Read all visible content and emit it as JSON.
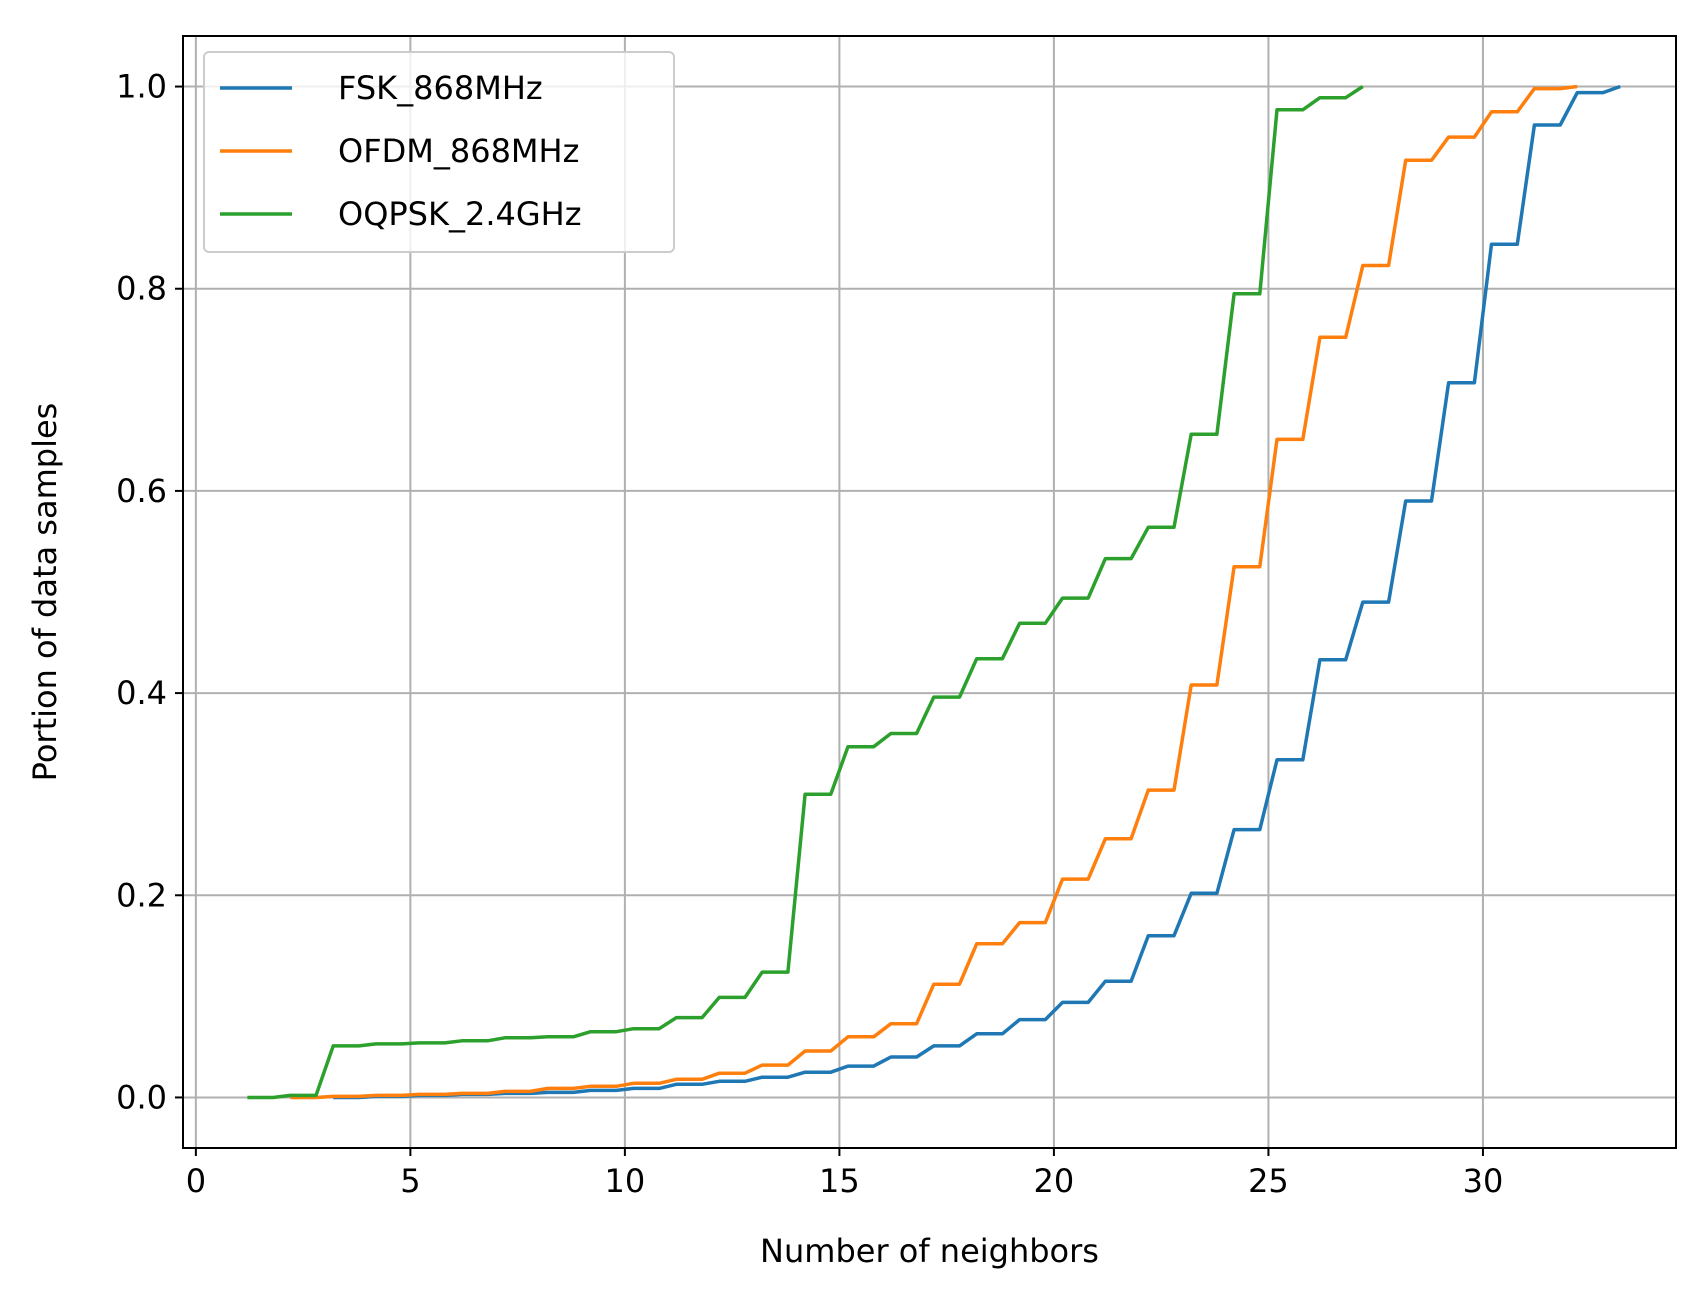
{
  "chart_data": {
    "type": "line",
    "title": "",
    "xlabel": "Number of neighbors",
    "ylabel": "Portion of data samples",
    "xlim": [
      -0.3,
      34.5
    ],
    "ylim": [
      -0.05,
      1.05
    ],
    "xticks": [
      0,
      5,
      10,
      15,
      20,
      25,
      30
    ],
    "xtick_labels": [
      "0",
      "5",
      "10",
      "15",
      "20",
      "25",
      "30"
    ],
    "yticks": [
      0.0,
      0.2,
      0.4,
      0.6,
      0.8,
      1.0
    ],
    "ytick_labels": [
      "0.0",
      "0.2",
      "0.4",
      "0.6",
      "0.8",
      "1.0"
    ],
    "grid": true,
    "legend_position": "top-left",
    "series": [
      {
        "name": "FSK_868MHz",
        "color": "#1f77b4",
        "x": [
          3,
          4,
          5,
          6,
          7,
          8,
          9,
          10,
          11,
          12,
          13,
          14,
          15,
          16,
          17,
          18,
          19,
          20,
          21,
          22,
          23,
          24,
          25,
          26,
          27,
          28,
          29,
          30,
          31,
          32,
          33
        ],
        "y": [
          0.0,
          0.001,
          0.002,
          0.003,
          0.004,
          0.005,
          0.007,
          0.009,
          0.013,
          0.016,
          0.02,
          0.025,
          0.031,
          0.04,
          0.051,
          0.063,
          0.077,
          0.094,
          0.115,
          0.16,
          0.202,
          0.265,
          0.334,
          0.433,
          0.49,
          0.59,
          0.707,
          0.844,
          0.962,
          0.994,
          1.0
        ]
      },
      {
        "name": "OFDM_868MHz",
        "color": "#ff7f0e",
        "x": [
          2,
          3,
          4,
          5,
          6,
          7,
          8,
          9,
          10,
          11,
          12,
          13,
          14,
          15,
          16,
          17,
          18,
          19,
          20,
          21,
          22,
          23,
          24,
          25,
          26,
          27,
          28,
          29,
          30,
          31,
          32
        ],
        "y": [
          0.0,
          0.001,
          0.002,
          0.003,
          0.004,
          0.006,
          0.009,
          0.011,
          0.014,
          0.018,
          0.024,
          0.032,
          0.046,
          0.06,
          0.073,
          0.112,
          0.152,
          0.173,
          0.216,
          0.256,
          0.304,
          0.408,
          0.525,
          0.651,
          0.752,
          0.823,
          0.927,
          0.95,
          0.975,
          0.998,
          1.0
        ]
      },
      {
        "name": "OQPSK_2.4GHz",
        "color": "#2ca02c",
        "x": [
          1,
          2,
          3,
          4,
          5,
          6,
          7,
          8,
          9,
          10,
          11,
          12,
          13,
          14,
          15,
          16,
          17,
          18,
          19,
          20,
          21,
          22,
          23,
          24,
          25,
          26,
          27
        ],
        "y": [
          0.0,
          0.002,
          0.051,
          0.053,
          0.054,
          0.056,
          0.059,
          0.06,
          0.065,
          0.068,
          0.079,
          0.099,
          0.124,
          0.3,
          0.347,
          0.36,
          0.396,
          0.434,
          0.469,
          0.494,
          0.533,
          0.564,
          0.656,
          0.795,
          0.977,
          0.989,
          1.0
        ]
      }
    ]
  }
}
